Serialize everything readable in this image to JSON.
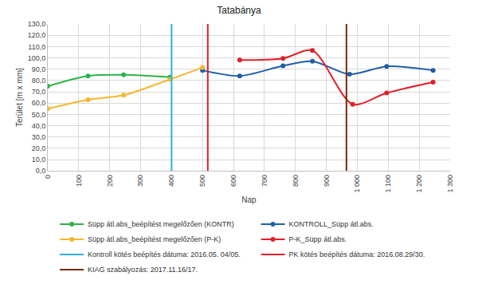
{
  "chart_data": {
    "type": "line",
    "title": "Tatabánya",
    "x_label": "Nap",
    "y_label": "Terület [m x mm]",
    "xlim": [
      0,
      1300
    ],
    "xticks": [
      0,
      100,
      200,
      300,
      400,
      500,
      600,
      700,
      800,
      900,
      {
        "value": 1000,
        "label": "1 000"
      },
      {
        "value": 1100,
        "label": "1 100"
      },
      {
        "value": 1200,
        "label": "1 200"
      },
      {
        "value": 1300,
        "label": "1 300"
      }
    ],
    "ylim": [
      0,
      130
    ],
    "yticks": [
      {
        "value": 0,
        "label": "0,0"
      },
      {
        "value": 10,
        "label": "10,0"
      },
      {
        "value": 20,
        "label": "20,0"
      },
      {
        "value": 30,
        "label": "30,0"
      },
      {
        "value": 40,
        "label": "40,0"
      },
      {
        "value": 50,
        "label": "50,0"
      },
      {
        "value": 60,
        "label": "60,0"
      },
      {
        "value": 70,
        "label": "70,0"
      },
      {
        "value": 80,
        "label": "80,0"
      },
      {
        "value": 90,
        "label": "90,0"
      },
      {
        "value": 100,
        "label": "100,0"
      },
      {
        "value": 110,
        "label": "110,0"
      },
      {
        "value": 120,
        "label": "120,0"
      },
      {
        "value": 130,
        "label": "130,0"
      }
    ],
    "grid": true,
    "legend": "bottom",
    "series": [
      {
        "name": "Süpp átl.abs_beépítést megelőzően (KONTR)",
        "type": "line",
        "color": "#2db34a",
        "marker": "circle",
        "line_style": "spline",
        "x": [
          0,
          130,
          245,
          395
        ],
        "values": [
          75,
          84,
          85,
          83
        ]
      },
      {
        "name": "KONTROLL_Süpp átl.abs.",
        "type": "line",
        "color": "#1f5fa8",
        "marker": "circle",
        "line_style": "spline",
        "x": [
          500,
          620,
          760,
          855,
          975,
          1095,
          1245
        ],
        "values": [
          89,
          84,
          93,
          97,
          85.5,
          92.5,
          89
        ]
      },
      {
        "name": "Süpp átl.abs_beépítést megelőzően (P-K)",
        "type": "line",
        "color": "#f5b82e",
        "marker": "circle",
        "line_style": "spline",
        "x": [
          0,
          130,
          245,
          395,
          500
        ],
        "values": [
          55,
          63,
          67,
          81,
          91.5
        ]
      },
      {
        "name": "P-K_Süpp átl.abs.",
        "type": "line",
        "color": "#e0202a",
        "marker": "circle",
        "line_style": "spline",
        "x": [
          620,
          760,
          855,
          985,
          1095,
          1245
        ],
        "values": [
          98,
          99.5,
          106.5,
          59,
          69,
          78.5
        ]
      },
      {
        "name": "Kontroll kötés beépítés dátuma: 2016.05. 04/05.",
        "type": "vline",
        "color": "#2fb0e0",
        "x": 400
      },
      {
        "name": "PK kötés beépítés dátuma: 2016.08.29/30.",
        "type": "vline",
        "color": "#e0202a",
        "x": 517
      },
      {
        "name": "KIAG szabályozás: 2017.11.16/17.",
        "type": "vline",
        "color": "#7a2a10",
        "x": 965
      }
    ]
  }
}
